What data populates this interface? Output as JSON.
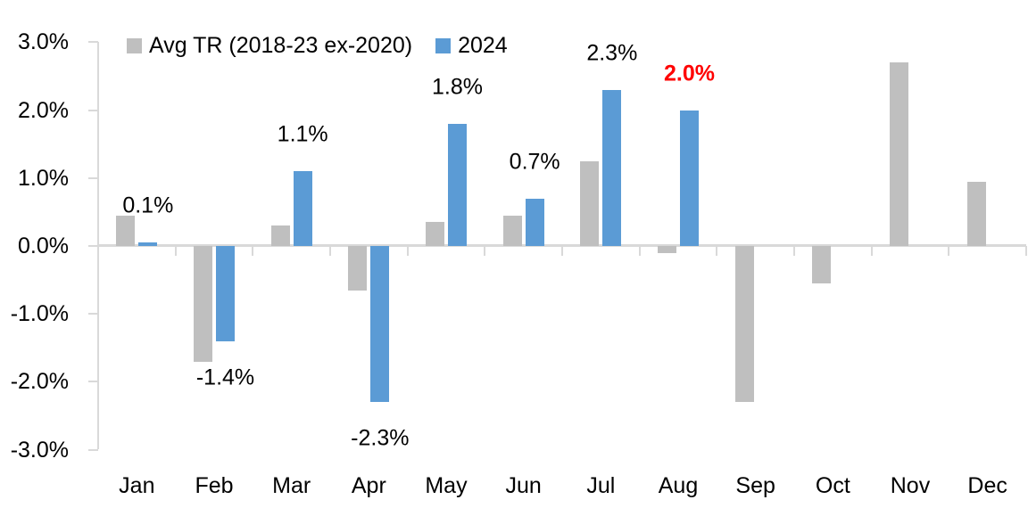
{
  "chart_data": {
    "type": "bar",
    "title": "",
    "xlabel": "",
    "ylabel": "",
    "categories": [
      "Jan",
      "Feb",
      "Mar",
      "Apr",
      "May",
      "Jun",
      "Jul",
      "Aug",
      "Sep",
      "Oct",
      "Nov",
      "Dec"
    ],
    "yticks": [
      "3.0%",
      "2.0%",
      "1.0%",
      "0.0%",
      "-1.0%",
      "-2.0%",
      "-3.0%"
    ],
    "ytick_values": [
      3.0,
      2.0,
      1.0,
      0.0,
      -1.0,
      -2.0,
      -3.0
    ],
    "ylim": [
      -3.0,
      3.0
    ],
    "grid": "zero-line-only",
    "legend_position": "top",
    "axis_color": "#D9D9D9",
    "text_color": "#000000",
    "series": [
      {
        "name": "Avg TR (2018-23 ex-2020)",
        "color": "#BFBFBF",
        "values": [
          0.45,
          -1.7,
          0.3,
          -0.65,
          0.35,
          0.45,
          1.25,
          -0.1,
          -2.3,
          -0.55,
          2.7,
          0.95
        ]
      },
      {
        "name": "2024",
        "color": "#5B9BD5",
        "values": [
          0.05,
          -1.4,
          1.1,
          -2.3,
          1.8,
          0.7,
          2.3,
          2.0,
          null,
          null,
          null,
          null
        ],
        "labels": [
          {
            "text": "0.1%"
          },
          {
            "text": "-1.4%"
          },
          {
            "text": "1.1%"
          },
          {
            "text": "-2.3%"
          },
          {
            "text": "1.8%"
          },
          {
            "text": "0.7%"
          },
          {
            "text": "2.3%"
          },
          {
            "text": "2.0%",
            "color": "#FF0000",
            "bold": true
          },
          null,
          null,
          null,
          null
        ]
      }
    ]
  }
}
